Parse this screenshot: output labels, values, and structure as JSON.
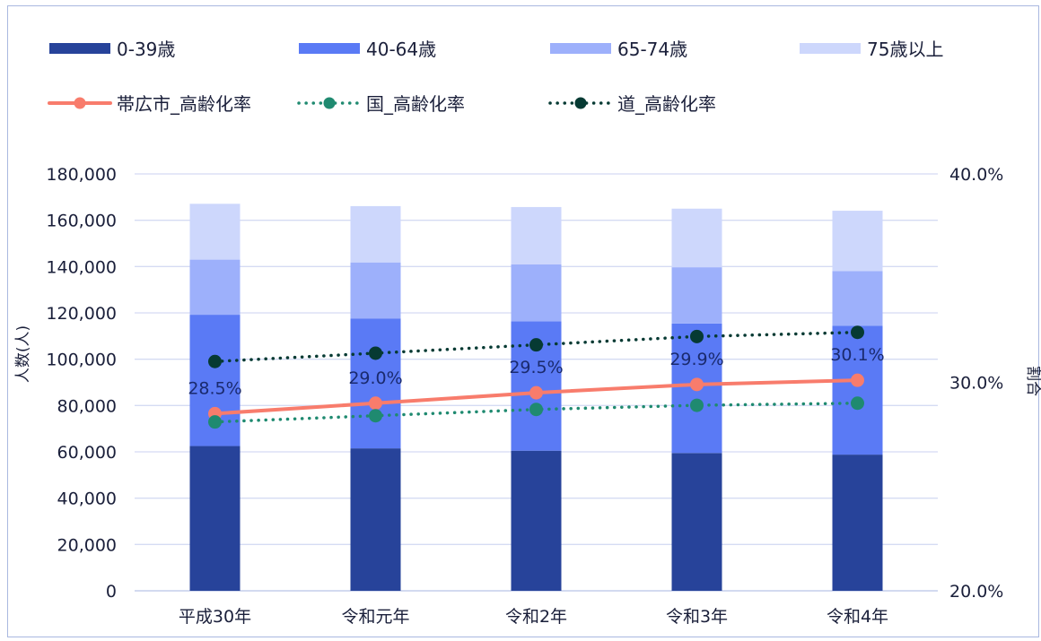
{
  "chart_data": {
    "type": "bar",
    "stacked": true,
    "categories": [
      "平成30年",
      "令和元年",
      "令和2年",
      "令和3年",
      "令和4年"
    ],
    "series": [
      {
        "name": "0-39歳",
        "color": "#27439a",
        "values": [
          62500,
          61500,
          60500,
          59500,
          58800
        ]
      },
      {
        "name": "40-64歳",
        "color": "#5a7af5",
        "values": [
          56700,
          56100,
          55900,
          55900,
          55600
        ]
      },
      {
        "name": "65-74歳",
        "color": "#9db0fb",
        "values": [
          23800,
          24200,
          24600,
          24300,
          23600
        ]
      },
      {
        "name": "75歳以上",
        "color": "#cdd7fc",
        "values": [
          24100,
          24300,
          24700,
          25300,
          26100
        ]
      }
    ],
    "lines": [
      {
        "name": "帯広市_高齢化率",
        "color": "#f87c6c",
        "style": "solid",
        "values": [
          28.5,
          29.0,
          29.5,
          29.9,
          30.1
        ],
        "labels": [
          "28.5%",
          "29.0%",
          "29.5%",
          "29.9%",
          "30.1%"
        ]
      },
      {
        "name": "国_高齢化率",
        "color": "#1f8a70",
        "style": "dotted",
        "values": [
          28.1,
          28.4,
          28.7,
          28.9,
          29.0
        ]
      },
      {
        "name": "道_高齢化率",
        "color": "#063a33",
        "style": "dotted",
        "values": [
          31.0,
          31.4,
          31.8,
          32.2,
          32.4
        ]
      }
    ],
    "ylabel": "人数(人)",
    "y2label": "割合",
    "ylim": [
      0,
      180000
    ],
    "y2lim": [
      20.0,
      40.0
    ],
    "yticks": [
      "0",
      "20,000",
      "40,000",
      "60,000",
      "80,000",
      "100,000",
      "120,000",
      "140,000",
      "160,000",
      "180,000"
    ],
    "y2ticks": [
      "20.0%",
      "30.0%",
      "40.0%"
    ],
    "grid": true,
    "legend_position": "top"
  }
}
